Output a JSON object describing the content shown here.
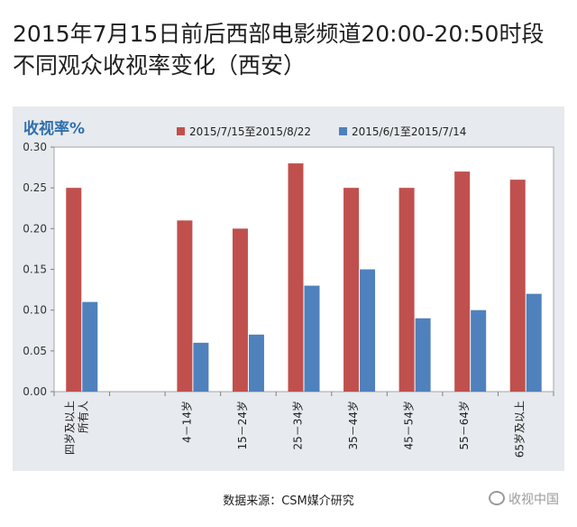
{
  "title": "2015年7月15日前后西部电影频道20:00-20:50时段不同观众收视率变化（西安）",
  "source": "数据来源：CSM媒介研究",
  "watermark": "收视中国",
  "watermark_icon": "wechat-icon",
  "colors": {
    "series1": "#c0504d",
    "series2": "#4f81bd",
    "ylabel": "#2f6fae",
    "panel": "#e7eaee"
  },
  "chart_data": {
    "type": "bar",
    "ylabel": "收视率%",
    "xlabel": "",
    "ylim": [
      0,
      0.3
    ],
    "yticks": [
      "0.00",
      "0.05",
      "0.10",
      "0.15",
      "0.20",
      "0.25",
      "0.30"
    ],
    "grid": false,
    "legend_position": "top",
    "categories": [
      "四岁及以上所有人",
      "",
      "4－14岁",
      "15－24岁",
      "25－34岁",
      "35－44岁",
      "45－54岁",
      "55－64岁",
      "65岁及以上"
    ],
    "category_lines": [
      [
        "四岁及以上",
        "所有人"
      ],
      [],
      [
        "4－14岁"
      ],
      [
        "15－24岁"
      ],
      [
        "25－34岁"
      ],
      [
        "35－44岁"
      ],
      [
        "45－54岁"
      ],
      [
        "55－64岁"
      ],
      [
        "65岁及以上"
      ]
    ],
    "series": [
      {
        "name": "2015/7/15至2015/8/22",
        "values": [
          0.25,
          null,
          0.21,
          0.2,
          0.28,
          0.25,
          0.25,
          0.27,
          0.26
        ]
      },
      {
        "name": "2015/6/1至2015/7/14",
        "values": [
          0.11,
          null,
          0.06,
          0.07,
          0.13,
          0.15,
          0.09,
          0.1,
          0.12
        ]
      }
    ]
  }
}
